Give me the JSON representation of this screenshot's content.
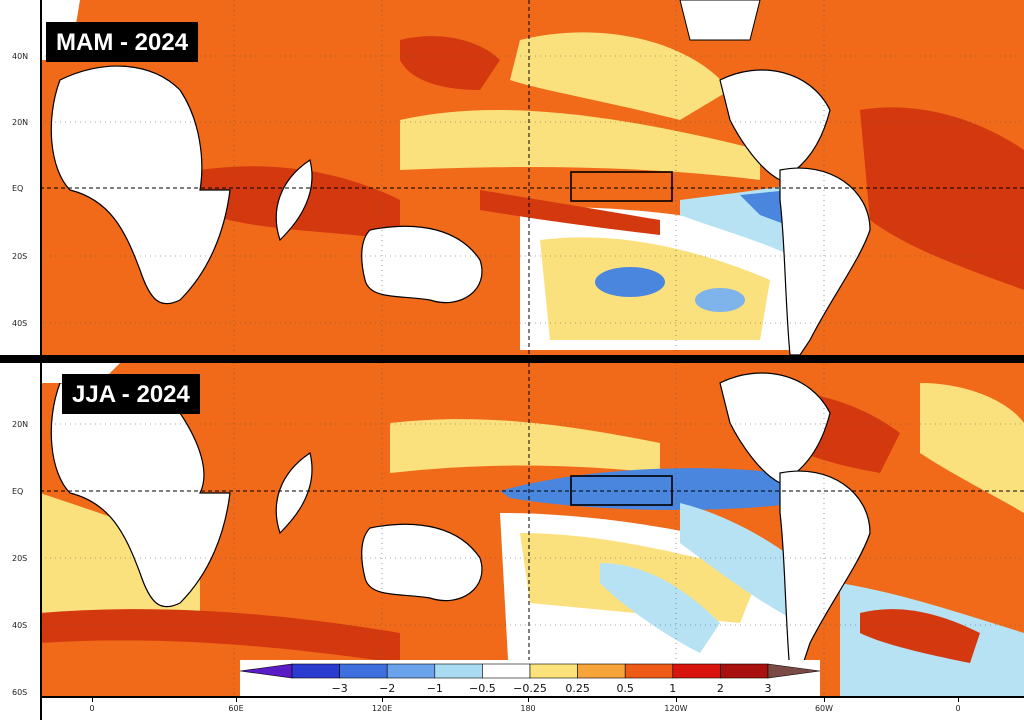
{
  "panels": [
    {
      "title": "MAM - 2024"
    },
    {
      "title": "JJA - 2024"
    }
  ],
  "axes": {
    "lat_top": [
      "40N",
      "20N",
      "EQ",
      "20S",
      "40S"
    ],
    "lat_bottom": [
      "20N",
      "EQ",
      "20S",
      "40S",
      "60S"
    ],
    "lon": [
      "0",
      "60E",
      "120E",
      "180",
      "120W",
      "60W",
      "0"
    ]
  },
  "legend": {
    "labels": [
      "−3",
      "−2",
      "−1",
      "−0.5",
      "−0.25",
      "0.25",
      "0.5",
      "1",
      "2",
      "3"
    ],
    "colors": [
      "#5a1cc4",
      "#2a3bd0",
      "#3f6fdc",
      "#6aa3ec",
      "#a9dcf2",
      "#ffffff",
      "#fbe27a",
      "#f7a43a",
      "#ef5a17",
      "#d9140e",
      "#a8110d",
      "#7a4a45"
    ]
  },
  "colors": {
    "hot": "#f06a1a",
    "very_hot": "#d4380f",
    "warm": "#fbe07e",
    "cool": "#b6e2f4",
    "cold": "#4a86de",
    "land": "#ffffff"
  }
}
